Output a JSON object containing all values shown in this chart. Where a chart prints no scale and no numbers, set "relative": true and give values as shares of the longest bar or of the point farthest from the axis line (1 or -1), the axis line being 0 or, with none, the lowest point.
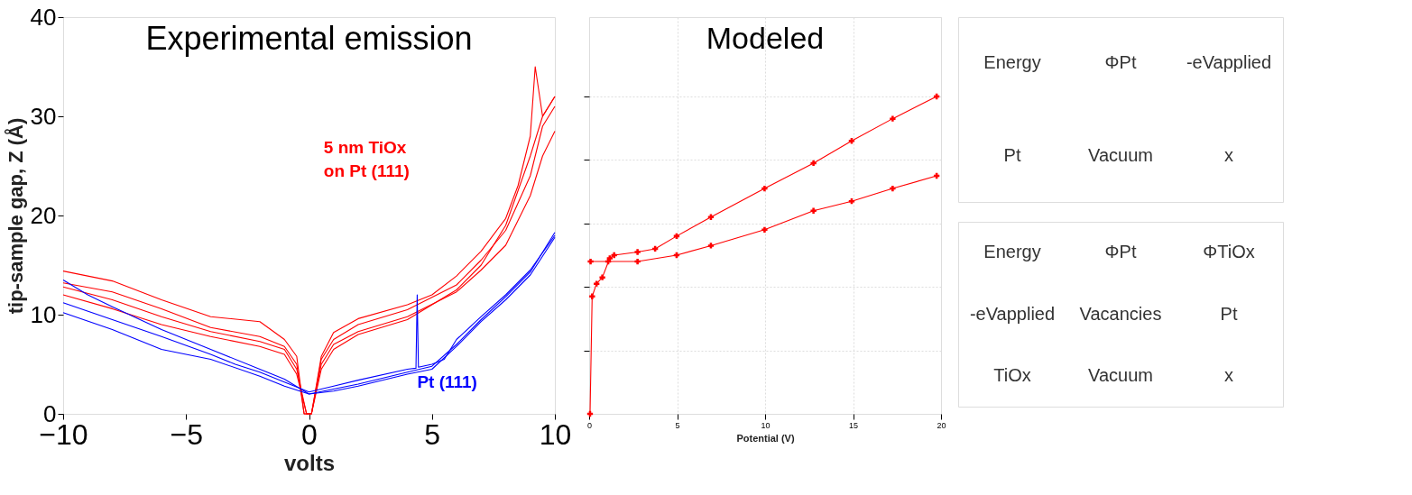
{
  "chart_data": [
    {
      "type": "line",
      "title": "Experimental emission",
      "xlabel": "volts",
      "ylabel": "tip-sample gap, Z (Å)",
      "xlim": [
        -10,
        10
      ],
      "ylim": [
        0,
        40
      ],
      "xticks": [
        -10,
        -5,
        0,
        5,
        10
      ],
      "yticks": [
        0,
        10,
        20,
        30,
        40
      ],
      "grid": false,
      "legend": false,
      "marker": "none",
      "line_style": "solid",
      "series": [
        {
          "name": "5 nm TiOx\non Pt (111)",
          "color": "#ff0000",
          "x": [
            -10,
            -8,
            -6,
            -4,
            -2,
            -1,
            -0.5,
            -0.2,
            0.1,
            0.5,
            1,
            2,
            4,
            5,
            6,
            7,
            8,
            8.5,
            9,
            9.2,
            9.5,
            10
          ],
          "values": [
            14.4,
            13.4,
            11.5,
            9.8,
            9.3,
            7.5,
            5.8,
            0,
            0,
            5.8,
            8.2,
            9.6,
            11.0,
            12.0,
            13.9,
            16.4,
            19.7,
            23,
            28,
            35,
            30,
            32
          ]
        },
        {
          "color": "#ff0000",
          "x": [
            -10,
            -8,
            -6,
            -4,
            -2,
            -1,
            -0.5,
            -0.2,
            0.1,
            0.5,
            1,
            2,
            4,
            6,
            7,
            8,
            9,
            9.5,
            10
          ],
          "values": [
            13.2,
            12.3,
            10.6,
            8.7,
            7.8,
            6.8,
            5,
            0,
            0,
            5.5,
            7.5,
            9.0,
            10.5,
            13.0,
            15.5,
            18.5,
            24,
            29,
            31
          ]
        },
        {
          "color": "#ff0000",
          "x": [
            -10,
            -8,
            -6,
            -4,
            -2,
            -1,
            -0.5,
            -0.1,
            0.1,
            0.5,
            1,
            2,
            4,
            6,
            7,
            8,
            9,
            9.5,
            10
          ],
          "values": [
            12.8,
            11.5,
            9.8,
            8.3,
            7.3,
            6.5,
            4.5,
            0,
            0,
            5,
            7,
            8.3,
            9.8,
            12.3,
            14.5,
            17,
            22,
            26,
            28.5
          ]
        },
        {
          "color": "#ff0000",
          "x": [
            -10,
            -8,
            -6,
            -4,
            -2,
            -1,
            -0.5,
            -0.1,
            0.1,
            0.5,
            1,
            2,
            4,
            6,
            7,
            8,
            9,
            9.5,
            10
          ],
          "values": [
            12.0,
            10.6,
            9.0,
            7.8,
            6.8,
            6.0,
            4.0,
            0,
            0,
            4.5,
            6.5,
            8.0,
            9.5,
            12.5,
            15,
            19,
            26,
            30,
            32
          ]
        },
        {
          "name": "Pt (111)",
          "color": "#0000ff",
          "x": [
            -10,
            -8,
            -6,
            -4,
            -3,
            -2,
            -1,
            0,
            1,
            2,
            4,
            4.35,
            4.4,
            4.45,
            5,
            5.5,
            6,
            7,
            8,
            9,
            10
          ],
          "values": [
            11.2,
            9.5,
            7.8,
            6.0,
            5.0,
            4.2,
            3.2,
            2.2,
            2.8,
            3.4,
            4.5,
            4.6,
            12,
            4.7,
            5.0,
            5.5,
            7.5,
            9.8,
            12,
            14.5,
            18
          ]
        },
        {
          "color": "#0000ff",
          "x": [
            -10,
            -9,
            -8,
            -6,
            -4,
            -2,
            -1,
            0,
            1,
            2,
            4,
            5,
            6,
            7,
            8,
            9,
            10
          ],
          "values": [
            13.5,
            12,
            10.8,
            8.5,
            6.5,
            4.5,
            3.5,
            2.0,
            2.5,
            3.0,
            4.2,
            4.8,
            7.0,
            9.5,
            11.8,
            14.3,
            18.3
          ]
        },
        {
          "color": "#0000ff",
          "x": [
            -10,
            -8,
            -6,
            -4,
            -2,
            -1,
            0,
            1,
            2,
            4,
            5,
            6,
            7,
            8,
            9,
            10
          ],
          "values": [
            10.2,
            8.5,
            6.5,
            5.5,
            3.8,
            2.8,
            2.0,
            2.3,
            2.8,
            4.0,
            4.5,
            6.8,
            9.3,
            11.5,
            14,
            17.8
          ]
        }
      ]
    },
    {
      "type": "line",
      "title": "Modeled",
      "xlabel": "Potential (V)",
      "xlim": [
        0,
        20
      ],
      "xticks": [
        0,
        5,
        10,
        15,
        20
      ],
      "relative": true,
      "grid": true,
      "legend": false,
      "marker": "cross",
      "line_style": "solid",
      "series": [
        {
          "color": "#ff0000",
          "x": [
            0.05,
            0.17,
            0.42,
            0.75,
            1.17,
            1.42,
            2.75,
            3.75,
            4.97,
            6.92,
            9.97,
            12.75,
            14.92,
            17.25,
            19.75
          ],
          "values": [
            0,
            0.37,
            0.41,
            0.43,
            0.49,
            0.5,
            0.51,
            0.52,
            0.56,
            0.62,
            0.71,
            0.79,
            0.86,
            0.93,
            1.0
          ]
        },
        {
          "color": "#ff0000",
          "x": [
            0.08,
            1.08,
            2.75,
            4.97,
            6.92,
            9.97,
            12.75,
            14.92,
            17.25,
            19.75
          ],
          "values": [
            0.48,
            0.48,
            0.48,
            0.5,
            0.53,
            0.58,
            0.64,
            0.67,
            0.71,
            0.75
          ]
        }
      ]
    },
    {
      "type": "other",
      "annotations": [
        "Energy",
        "ΦPt",
        "-eVapplied",
        "Pt",
        "Vacuum",
        "x"
      ]
    },
    {
      "type": "other",
      "annotations": [
        "Energy",
        "ΦPt",
        "ΦTiOx",
        "-eVapplied",
        "Vacancies",
        "Pt",
        "TiOx",
        "Vacuum",
        "x"
      ]
    }
  ]
}
